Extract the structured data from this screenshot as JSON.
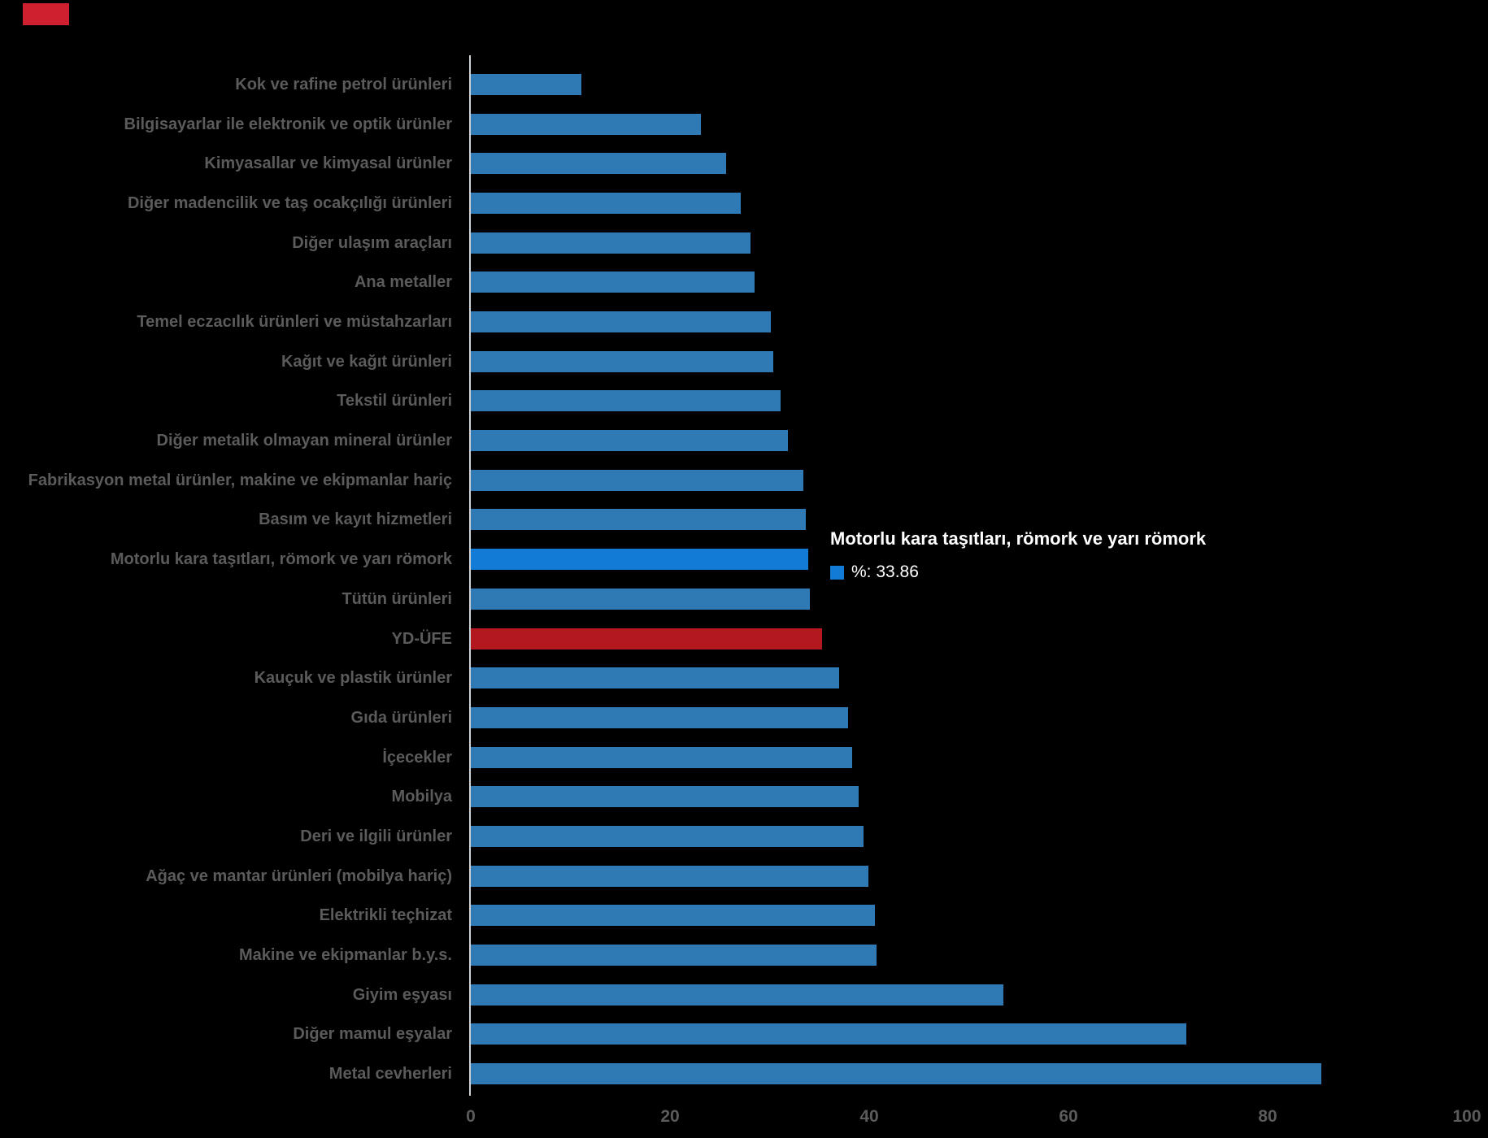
{
  "chart_data": {
    "type": "bar",
    "orientation": "horizontal",
    "title": "",
    "xlabel": "",
    "ylabel": "%",
    "xlim": [
      0,
      100
    ],
    "x_ticks": [
      0,
      20,
      40,
      60,
      80,
      100
    ],
    "grid": false,
    "legend_position": "none",
    "categories": [
      "Kok ve rafine petrol ürünleri",
      "Bilgisayarlar ile elektronik ve optik ürünler",
      "Kimyasallar ve kimyasal ürünler",
      "Diğer madencilik ve taş ocakçılığı ürünleri",
      "Diğer ulaşım araçları",
      "Ana metaller",
      "Temel eczacılık ürünleri ve müstahzarları",
      "Kağıt ve kağıt ürünleri",
      "Tekstil ürünleri",
      "Diğer metalik olmayan mineral ürünler",
      "Fabrikasyon metal ürünler, makine ve ekipmanlar hariç",
      "Basım ve kayıt hizmetleri",
      "Motorlu kara taşıtları, römork ve yarı römork",
      "Tütün ürünleri",
      "YD-ÜFE",
      "Kauçuk ve plastik ürünler",
      "Gıda ürünleri",
      "İçecekler",
      "Mobilya",
      "Deri ve ilgili ürünler",
      "Ağaç ve mantar ürünleri (mobilya hariç)",
      "Elektrikli teçhizat",
      "Makine ve ekipmanlar b.y.s.",
      "Giyim eşyası",
      "Diğer mamul eşyalar",
      "Metal cevherleri"
    ],
    "values": [
      11.1,
      23.1,
      25.6,
      27.1,
      28.1,
      28.5,
      30.1,
      30.4,
      31.1,
      31.8,
      33.4,
      33.6,
      33.86,
      34.0,
      35.3,
      37.0,
      37.9,
      38.3,
      38.9,
      39.4,
      39.9,
      40.6,
      40.7,
      53.5,
      71.8,
      85.4
    ],
    "styles": [
      "default",
      "default",
      "default",
      "default",
      "default",
      "default",
      "default",
      "default",
      "default",
      "default",
      "default",
      "default",
      "active",
      "default",
      "reference",
      "default",
      "default",
      "default",
      "default",
      "default",
      "default",
      "default",
      "default",
      "default",
      "default",
      "default"
    ],
    "highlighted_category": "Motorlu kara taşıtları, römork ve yarı römork",
    "reference_category": "YD-ÜFE"
  },
  "tooltip": {
    "title": "Motorlu kara taşıtları, römork ve yarı römork",
    "value_label": "%: 33.86"
  },
  "x_axis": {
    "tick_labels": [
      "0",
      "20",
      "40",
      "60",
      "80",
      "100"
    ]
  },
  "colors": {
    "background": "#000000",
    "bar_default": "#2f79b5",
    "bar_active": "#117bd6",
    "bar_reference": "#b2181e",
    "text_muted": "#5b5b5b",
    "axis_line": "#ccd2d8",
    "tooltip_text": "#ffffff",
    "corner_marker": "#cf2030"
  }
}
